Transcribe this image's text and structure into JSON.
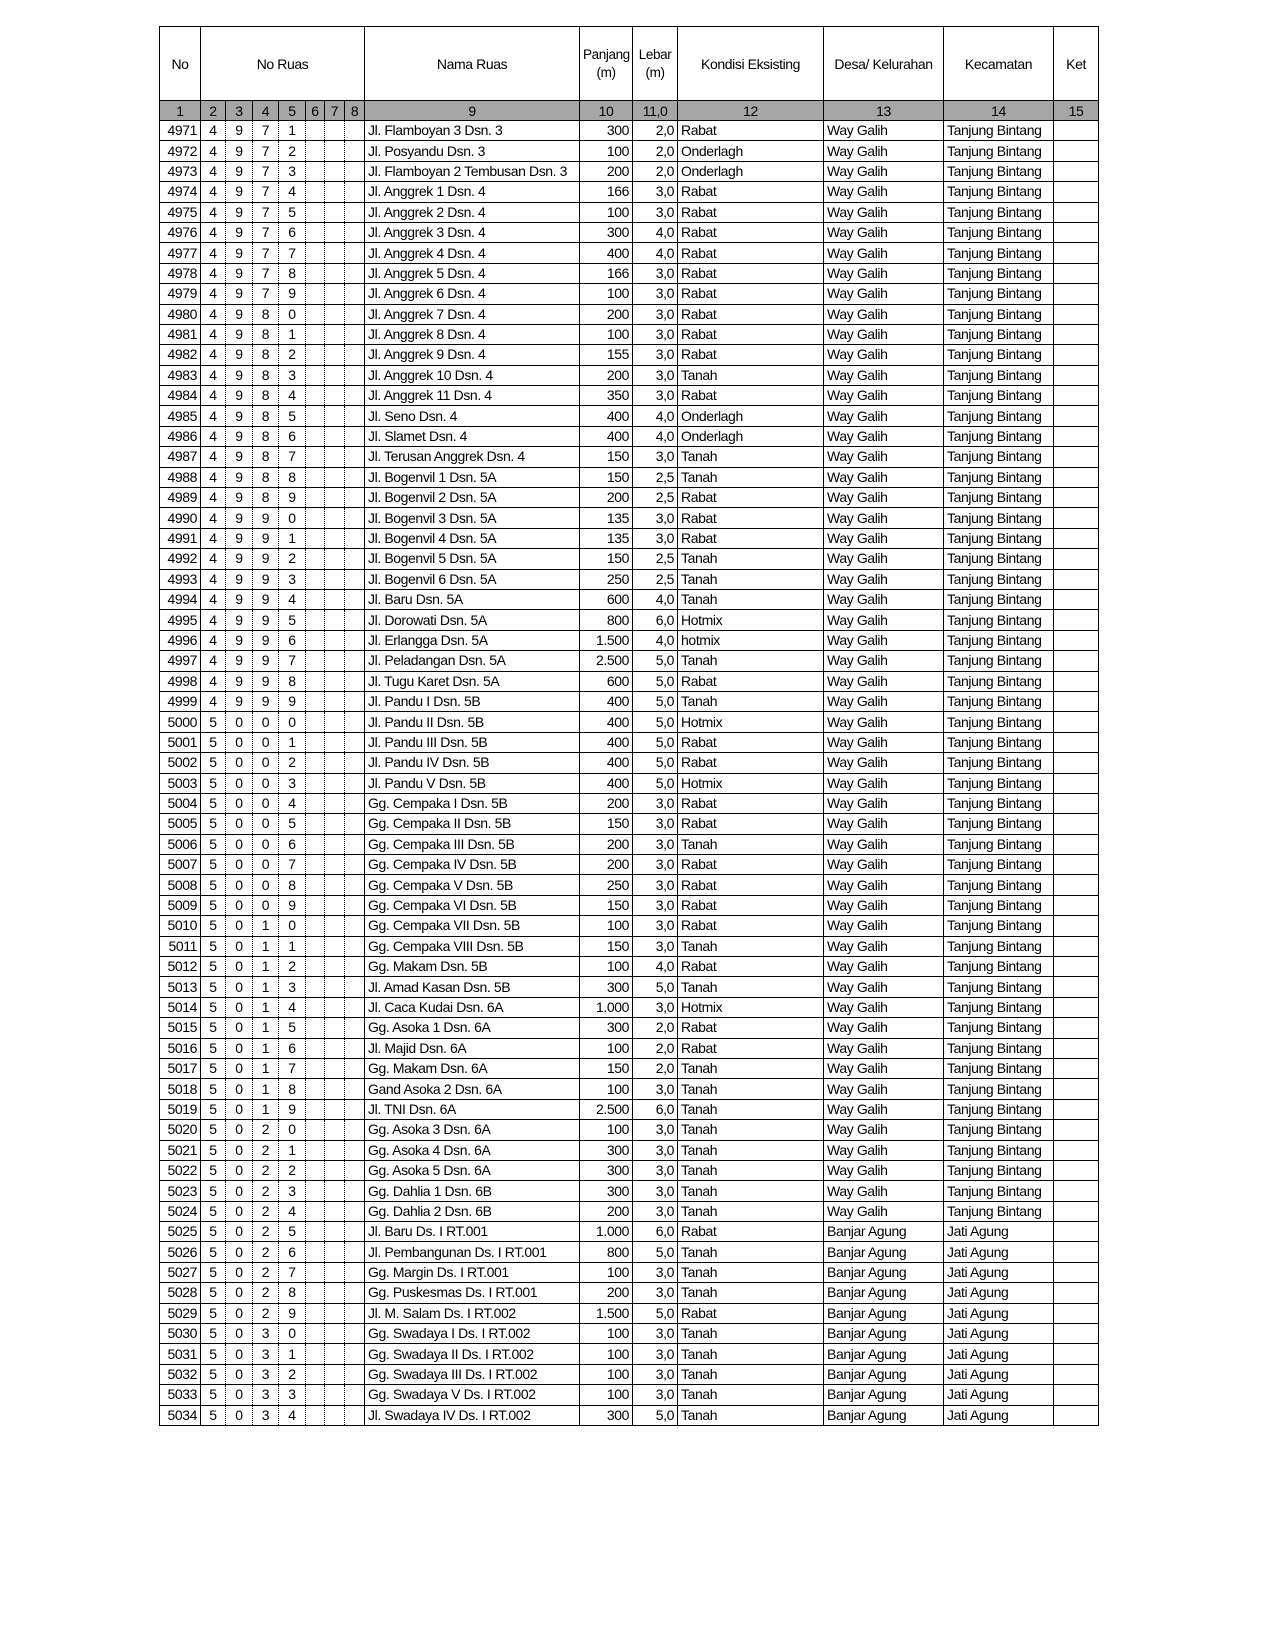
{
  "headers": {
    "no": "No",
    "no_ruas": "No Ruas",
    "nama_ruas": "Nama Ruas",
    "panjang": "Panjang",
    "panjang_unit": "(m)",
    "lebar": "Lebar",
    "lebar_unit": "(m)",
    "kondisi": "Kondisi Eksisting",
    "desa": "Desa/ Kelurahan",
    "kecamatan": "Kecamatan",
    "ket": "Ket"
  },
  "column_numbers": [
    "1",
    "2",
    "3",
    "4",
    "5",
    "6",
    "7",
    "8",
    "9",
    "10",
    "11,0",
    "12",
    "13",
    "14",
    "15"
  ],
  "rows": [
    [
      "4971",
      "4971",
      "Jl. Flamboyan 3  Dsn. 3",
      "300",
      "2,0",
      "Rabat",
      "Way Galih",
      "Tanjung Bintang",
      ""
    ],
    [
      "4972",
      "4972",
      "Jl. Posyandu  Dsn. 3",
      "100",
      "2,0",
      "Onderlagh",
      "Way Galih",
      "Tanjung Bintang",
      ""
    ],
    [
      "4973",
      "4973",
      "Jl. Flamboyan 2 Tembusan  Dsn. 3",
      "200",
      "2,0",
      "Onderlagh",
      "Way Galih",
      "Tanjung Bintang",
      ""
    ],
    [
      "4974",
      "4974",
      "Jl. Anggrek 1  Dsn. 4",
      "166",
      "3,0",
      "Rabat",
      "Way Galih",
      "Tanjung Bintang",
      ""
    ],
    [
      "4975",
      "4975",
      "Jl. Anggrek 2  Dsn. 4",
      "100",
      "3,0",
      "Rabat",
      "Way Galih",
      "Tanjung Bintang",
      ""
    ],
    [
      "4976",
      "4976",
      "Jl. Anggrek 3  Dsn. 4",
      "300",
      "4,0",
      "Rabat",
      "Way Galih",
      "Tanjung Bintang",
      ""
    ],
    [
      "4977",
      "4977",
      "Jl. Anggrek 4  Dsn. 4",
      "400",
      "4,0",
      "Rabat",
      "Way Galih",
      "Tanjung Bintang",
      ""
    ],
    [
      "4978",
      "4978",
      "Jl. Anggrek 5  Dsn. 4",
      "166",
      "3,0",
      "Rabat",
      "Way Galih",
      "Tanjung Bintang",
      ""
    ],
    [
      "4979",
      "4979",
      "Jl. Anggrek 6  Dsn. 4",
      "100",
      "3,0",
      "Rabat",
      "Way Galih",
      "Tanjung Bintang",
      ""
    ],
    [
      "4980",
      "4980",
      "Jl. Anggrek 7  Dsn. 4",
      "200",
      "3,0",
      "Rabat",
      "Way Galih",
      "Tanjung Bintang",
      ""
    ],
    [
      "4981",
      "4981",
      "Jl. Anggrek 8  Dsn. 4",
      "100",
      "3,0",
      "Rabat",
      "Way Galih",
      "Tanjung Bintang",
      ""
    ],
    [
      "4982",
      "4982",
      "Jl. Anggrek 9  Dsn. 4",
      "155",
      "3,0",
      "Rabat",
      "Way Galih",
      "Tanjung Bintang",
      ""
    ],
    [
      "4983",
      "4983",
      "Jl. Anggrek 10  Dsn. 4",
      "200",
      "3,0",
      "Tanah",
      "Way Galih",
      "Tanjung Bintang",
      ""
    ],
    [
      "4984",
      "4984",
      "Jl. Anggrek 11  Dsn. 4",
      "350",
      "3,0",
      "Rabat",
      "Way Galih",
      "Tanjung Bintang",
      ""
    ],
    [
      "4985",
      "4985",
      "Jl. Seno  Dsn. 4",
      "400",
      "4,0",
      "Onderlagh",
      "Way Galih",
      "Tanjung Bintang",
      ""
    ],
    [
      "4986",
      "4986",
      "Jl. Slamet  Dsn. 4",
      "400",
      "4,0",
      "Onderlagh",
      "Way Galih",
      "Tanjung Bintang",
      ""
    ],
    [
      "4987",
      "4987",
      "Jl. Terusan Anggrek  Dsn. 4",
      "150",
      "3,0",
      "Tanah",
      "Way Galih",
      "Tanjung Bintang",
      ""
    ],
    [
      "4988",
      "4988",
      "Jl. Bogenvil 1  Dsn. 5A",
      "150",
      "2,5",
      "Tanah",
      "Way Galih",
      "Tanjung Bintang",
      ""
    ],
    [
      "4989",
      "4989",
      "Jl. Bogenvil 2  Dsn. 5A",
      "200",
      "2,5",
      "Rabat",
      "Way Galih",
      "Tanjung Bintang",
      ""
    ],
    [
      "4990",
      "4990",
      "Jl. Bogenvil 3  Dsn. 5A",
      "135",
      "3,0",
      "Rabat",
      "Way Galih",
      "Tanjung Bintang",
      ""
    ],
    [
      "4991",
      "4991",
      "Jl. Bogenvil 4  Dsn. 5A",
      "135",
      "3,0",
      "Rabat",
      "Way Galih",
      "Tanjung Bintang",
      ""
    ],
    [
      "4992",
      "4992",
      "Jl. Bogenvil 5  Dsn. 5A",
      "150",
      "2,5",
      "Tanah",
      "Way Galih",
      "Tanjung Bintang",
      ""
    ],
    [
      "4993",
      "4993",
      "Jl. Bogenvil 6  Dsn. 5A",
      "250",
      "2,5",
      "Tanah",
      "Way Galih",
      "Tanjung Bintang",
      ""
    ],
    [
      "4994",
      "4994",
      "Jl. Baru  Dsn. 5A",
      "600",
      "4,0",
      "Tanah",
      "Way Galih",
      "Tanjung Bintang",
      ""
    ],
    [
      "4995",
      "4995",
      "Jl. Dorowati  Dsn. 5A",
      "800",
      "6,0",
      "Hotmix",
      "Way Galih",
      "Tanjung Bintang",
      ""
    ],
    [
      "4996",
      "4996",
      "Jl. Erlangga  Dsn. 5A",
      "1.500",
      "4,0",
      "hotmix",
      "Way Galih",
      "Tanjung Bintang",
      ""
    ],
    [
      "4997",
      "4997",
      "Jl. Peladangan  Dsn. 5A",
      "2.500",
      "5,0",
      "Tanah",
      "Way Galih",
      "Tanjung Bintang",
      ""
    ],
    [
      "4998",
      "4998",
      "Jl. Tugu Karet  Dsn. 5A",
      "600",
      "5,0",
      "Rabat",
      "Way Galih",
      "Tanjung Bintang",
      ""
    ],
    [
      "4999",
      "4999",
      "Jl. Pandu I  Dsn. 5B",
      "400",
      "5,0",
      "Tanah",
      "Way Galih",
      "Tanjung Bintang",
      ""
    ],
    [
      "5000",
      "5000",
      "Jl. Pandu II  Dsn. 5B",
      "400",
      "5,0",
      "Hotmix",
      "Way Galih",
      "Tanjung Bintang",
      ""
    ],
    [
      "5001",
      "5001",
      "Jl. Pandu III  Dsn. 5B",
      "400",
      "5,0",
      "Rabat",
      "Way Galih",
      "Tanjung Bintang",
      ""
    ],
    [
      "5002",
      "5002",
      "Jl. Pandu IV  Dsn. 5B",
      "400",
      "5,0",
      "Rabat",
      "Way Galih",
      "Tanjung Bintang",
      ""
    ],
    [
      "5003",
      "5003",
      "Jl. Pandu V  Dsn. 5B",
      "400",
      "5,0",
      "Hotmix",
      "Way Galih",
      "Tanjung Bintang",
      ""
    ],
    [
      "5004",
      "5004",
      "Gg. Cempaka I  Dsn. 5B",
      "200",
      "3,0",
      "Rabat",
      "Way Galih",
      "Tanjung Bintang",
      ""
    ],
    [
      "5005",
      "5005",
      "Gg. Cempaka II  Dsn. 5B",
      "150",
      "3,0",
      "Rabat",
      "Way Galih",
      "Tanjung Bintang",
      ""
    ],
    [
      "5006",
      "5006",
      "Gg. Cempaka III  Dsn. 5B",
      "200",
      "3,0",
      "Tanah",
      "Way Galih",
      "Tanjung Bintang",
      ""
    ],
    [
      "5007",
      "5007",
      "Gg. Cempaka IV  Dsn. 5B",
      "200",
      "3,0",
      "Rabat",
      "Way Galih",
      "Tanjung Bintang",
      ""
    ],
    [
      "5008",
      "5008",
      "Gg. Cempaka V  Dsn. 5B",
      "250",
      "3,0",
      "Rabat",
      "Way Galih",
      "Tanjung Bintang",
      ""
    ],
    [
      "5009",
      "5009",
      "Gg. Cempaka VI  Dsn. 5B",
      "150",
      "3,0",
      "Rabat",
      "Way Galih",
      "Tanjung Bintang",
      ""
    ],
    [
      "5010",
      "5010",
      "Gg. Cempaka VII  Dsn. 5B",
      "100",
      "3,0",
      "Rabat",
      "Way Galih",
      "Tanjung Bintang",
      ""
    ],
    [
      "5011",
      "5011",
      "Gg. Cempaka VIII  Dsn. 5B",
      "150",
      "3,0",
      "Tanah",
      "Way Galih",
      "Tanjung Bintang",
      ""
    ],
    [
      "5012",
      "5012",
      "Gg. Makam  Dsn. 5B",
      "100",
      "4,0",
      "Rabat",
      "Way Galih",
      "Tanjung Bintang",
      ""
    ],
    [
      "5013",
      "5013",
      "Jl. Amad Kasan  Dsn. 5B",
      "300",
      "5,0",
      "Tanah",
      "Way Galih",
      "Tanjung Bintang",
      ""
    ],
    [
      "5014",
      "5014",
      "Jl. Caca Kudai  Dsn. 6A",
      "1.000",
      "3,0",
      "Hotmix",
      "Way Galih",
      "Tanjung Bintang",
      ""
    ],
    [
      "5015",
      "5015",
      "Gg. Asoka 1  Dsn. 6A",
      "300",
      "2,0",
      "Rabat",
      "Way Galih",
      "Tanjung Bintang",
      ""
    ],
    [
      "5016",
      "5016",
      "Jl. Majid  Dsn. 6A",
      "100",
      "2,0",
      "Rabat",
      "Way Galih",
      "Tanjung Bintang",
      ""
    ],
    [
      "5017",
      "5017",
      "Gg. Makam  Dsn. 6A",
      "150",
      "2,0",
      "Tanah",
      "Way Galih",
      "Tanjung Bintang",
      ""
    ],
    [
      "5018",
      "5018",
      "Gand Asoka 2  Dsn. 6A",
      "100",
      "3,0",
      "Tanah",
      "Way Galih",
      "Tanjung Bintang",
      ""
    ],
    [
      "5019",
      "5019",
      "Jl. TNI  Dsn. 6A",
      "2.500",
      "6,0",
      "Tanah",
      "Way Galih",
      "Tanjung Bintang",
      ""
    ],
    [
      "5020",
      "5020",
      "Gg. Asoka 3  Dsn. 6A",
      "100",
      "3,0",
      "Tanah",
      "Way Galih",
      "Tanjung Bintang",
      ""
    ],
    [
      "5021",
      "5021",
      "Gg. Asoka 4  Dsn. 6A",
      "300",
      "3,0",
      "Tanah",
      "Way Galih",
      "Tanjung Bintang",
      ""
    ],
    [
      "5022",
      "5022",
      "Gg. Asoka 5  Dsn. 6A",
      "300",
      "3,0",
      "Tanah",
      "Way Galih",
      "Tanjung Bintang",
      ""
    ],
    [
      "5023",
      "5023",
      "Gg. Dahlia 1  Dsn. 6B",
      "300",
      "3,0",
      "Tanah",
      "Way Galih",
      "Tanjung Bintang",
      ""
    ],
    [
      "5024",
      "5024",
      "Gg. Dahlia 2  Dsn. 6B",
      "200",
      "3,0",
      "Tanah",
      "Way Galih",
      "Tanjung Bintang",
      ""
    ],
    [
      "5025",
      "5025",
      "Jl. Baru  Ds. I RT.001",
      "1.000",
      "6,0",
      "Rabat",
      "Banjar Agung",
      "Jati Agung",
      ""
    ],
    [
      "5026",
      "5026",
      "Jl. Pembangunan  Ds. I RT.001",
      "800",
      "5,0",
      "Tanah",
      "Banjar Agung",
      "Jati Agung",
      ""
    ],
    [
      "5027",
      "5027",
      "Gg. Margin  Ds. I RT.001",
      "100",
      "3,0",
      "Tanah",
      "Banjar Agung",
      "Jati Agung",
      ""
    ],
    [
      "5028",
      "5028",
      "Gg. Puskesmas  Ds. I RT.001",
      "200",
      "3,0",
      "Tanah",
      "Banjar Agung",
      "Jati Agung",
      ""
    ],
    [
      "5029",
      "5029",
      "Jl. M. Salam  Ds. I RT.002",
      "1.500",
      "5,0",
      "Rabat",
      "Banjar Agung",
      "Jati Agung",
      ""
    ],
    [
      "5030",
      "5030",
      "Gg. Swadaya I  Ds. I RT.002",
      "100",
      "3,0",
      "Tanah",
      "Banjar Agung",
      "Jati Agung",
      ""
    ],
    [
      "5031",
      "5031",
      "Gg. Swadaya II  Ds. I RT.002",
      "100",
      "3,0",
      "Tanah",
      "Banjar Agung",
      "Jati Agung",
      ""
    ],
    [
      "5032",
      "5032",
      "Gg. Swadaya III  Ds. I RT.002",
      "100",
      "3,0",
      "Tanah",
      "Banjar Agung",
      "Jati Agung",
      ""
    ],
    [
      "5033",
      "5033",
      "Gg. Swadaya V  Ds. I RT.002",
      "100",
      "3,0",
      "Tanah",
      "Banjar Agung",
      "Jati Agung",
      ""
    ],
    [
      "5034",
      "5034",
      "Jl. Swadaya IV  Ds. I RT.002",
      "300",
      "5,0",
      "Tanah",
      "Banjar Agung",
      "Jati Agung",
      ""
    ]
  ]
}
